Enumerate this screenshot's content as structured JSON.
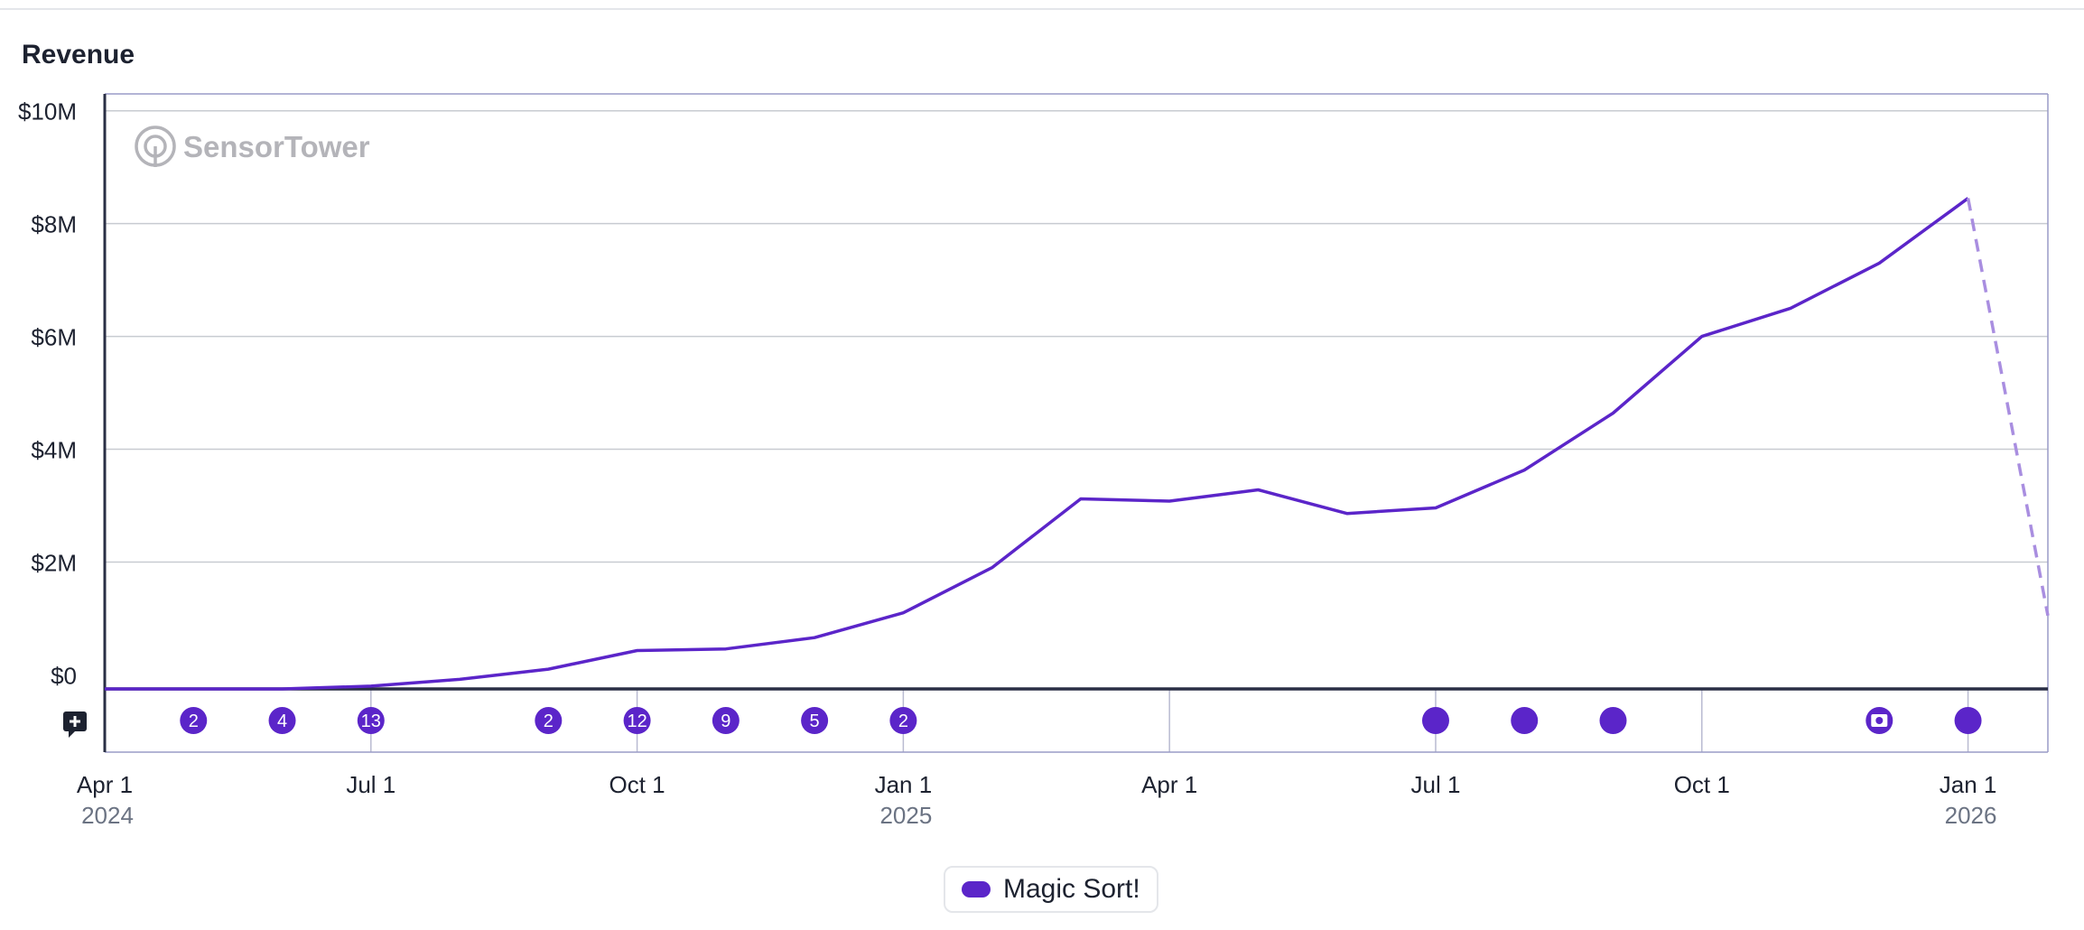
{
  "chart_data": {
    "type": "line",
    "title": "Revenue",
    "watermark": "SensorTower",
    "y_tick_labels": [
      "$10M",
      "$8M",
      "$6M",
      "$4M",
      "$2M",
      "$0"
    ],
    "y_ticks": [
      10,
      8,
      6,
      4,
      2,
      0
    ],
    "ylim": [
      -0.25,
      10.3
    ],
    "y_unit": "$M",
    "xlim": [
      0,
      21.9
    ],
    "x_unit": "months since 2024-04-01",
    "x_ticks": [
      {
        "x": 0,
        "label": "Apr 1",
        "year": "2024"
      },
      {
        "x": 3,
        "label": "Jul 1",
        "year": ""
      },
      {
        "x": 6,
        "label": "Oct 1",
        "year": ""
      },
      {
        "x": 9,
        "label": "Jan 1",
        "year": "2025"
      },
      {
        "x": 12,
        "label": "Apr 1",
        "year": ""
      },
      {
        "x": 15,
        "label": "Jul 1",
        "year": ""
      },
      {
        "x": 18,
        "label": "Oct 1",
        "year": ""
      },
      {
        "x": 21,
        "label": "Jan 1",
        "year": "2026"
      }
    ],
    "series": [
      {
        "name": "Magic Sort!",
        "color": "#5b25c9",
        "x": [
          0,
          1,
          2,
          3,
          4,
          5,
          6,
          7,
          8,
          9,
          10,
          11,
          12,
          13,
          14,
          15,
          16,
          17,
          18,
          19,
          20,
          21
        ],
        "values": [
          -0.25,
          -0.25,
          -0.25,
          -0.2,
          -0.08,
          0.1,
          0.43,
          0.46,
          0.66,
          1.1,
          1.9,
          3.12,
          3.08,
          3.28,
          2.86,
          2.96,
          3.63,
          4.64,
          6.0,
          6.5,
          7.3,
          8.45
        ],
        "projection": {
          "x": [
            21,
            21.9
          ],
          "values": [
            8.45,
            1.05
          ],
          "color": "#a98ee0"
        }
      }
    ],
    "event_markers": [
      {
        "x": 1,
        "label": "2"
      },
      {
        "x": 2,
        "label": "4"
      },
      {
        "x": 3,
        "label": "13"
      },
      {
        "x": 5,
        "label": "2"
      },
      {
        "x": 6,
        "label": "12"
      },
      {
        "x": 7,
        "label": "9"
      },
      {
        "x": 8,
        "label": "5"
      },
      {
        "x": 9,
        "label": "2"
      },
      {
        "x": 15,
        "label": ""
      },
      {
        "x": 16,
        "label": ""
      },
      {
        "x": 17,
        "label": ""
      },
      {
        "x": 20,
        "label": "",
        "icon": "star-badge-icon"
      },
      {
        "x": 21,
        "label": ""
      }
    ],
    "legend": [
      {
        "name": "Magic Sort!",
        "color": "#5b25c9"
      }
    ],
    "grid": true
  }
}
